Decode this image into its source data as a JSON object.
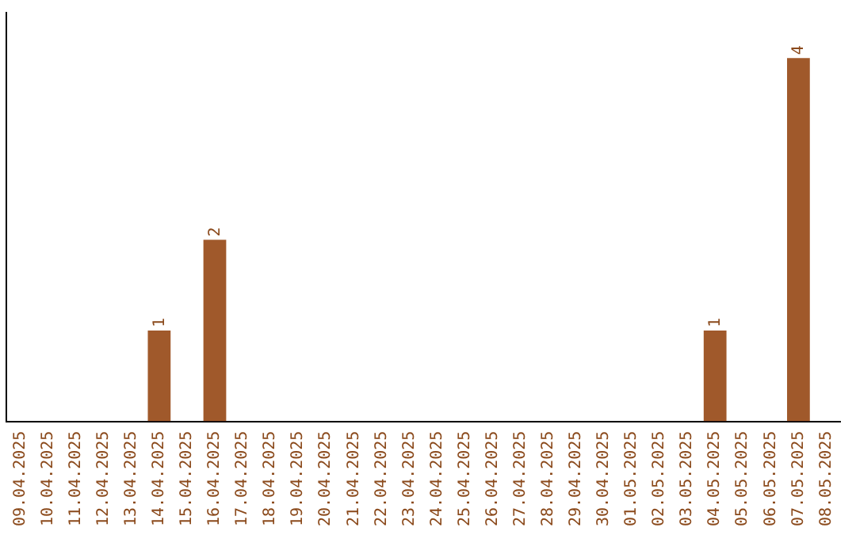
{
  "chart_data": {
    "type": "bar",
    "categories": [
      "09.04.2025",
      "10.04.2025",
      "11.04.2025",
      "12.04.2025",
      "13.04.2025",
      "14.04.2025",
      "15.04.2025",
      "16.04.2025",
      "17.04.2025",
      "18.04.2025",
      "19.04.2025",
      "20.04.2025",
      "21.04.2025",
      "22.04.2025",
      "23.04.2025",
      "24.04.2025",
      "25.04.2025",
      "26.04.2025",
      "27.04.2025",
      "28.04.2025",
      "29.04.2025",
      "30.04.2025",
      "01.05.2025",
      "02.05.2025",
      "03.05.2025",
      "04.05.2025",
      "05.05.2025",
      "06.05.2025",
      "07.05.2025",
      "08.05.2025"
    ],
    "values": [
      0,
      0,
      0,
      0,
      0,
      1,
      0,
      2,
      0,
      0,
      0,
      0,
      0,
      0,
      0,
      0,
      0,
      0,
      0,
      0,
      0,
      0,
      0,
      0,
      0,
      1,
      0,
      0,
      4,
      0
    ],
    "color": "#a0592b",
    "value_labels": [
      null,
      null,
      null,
      null,
      null,
      "1",
      null,
      "2",
      null,
      null,
      null,
      null,
      null,
      null,
      null,
      null,
      null,
      null,
      null,
      null,
      null,
      null,
      null,
      null,
      null,
      "1",
      null,
      null,
      "4",
      null
    ],
    "tick_labels": "x",
    "grid": false,
    "legend": false
  }
}
